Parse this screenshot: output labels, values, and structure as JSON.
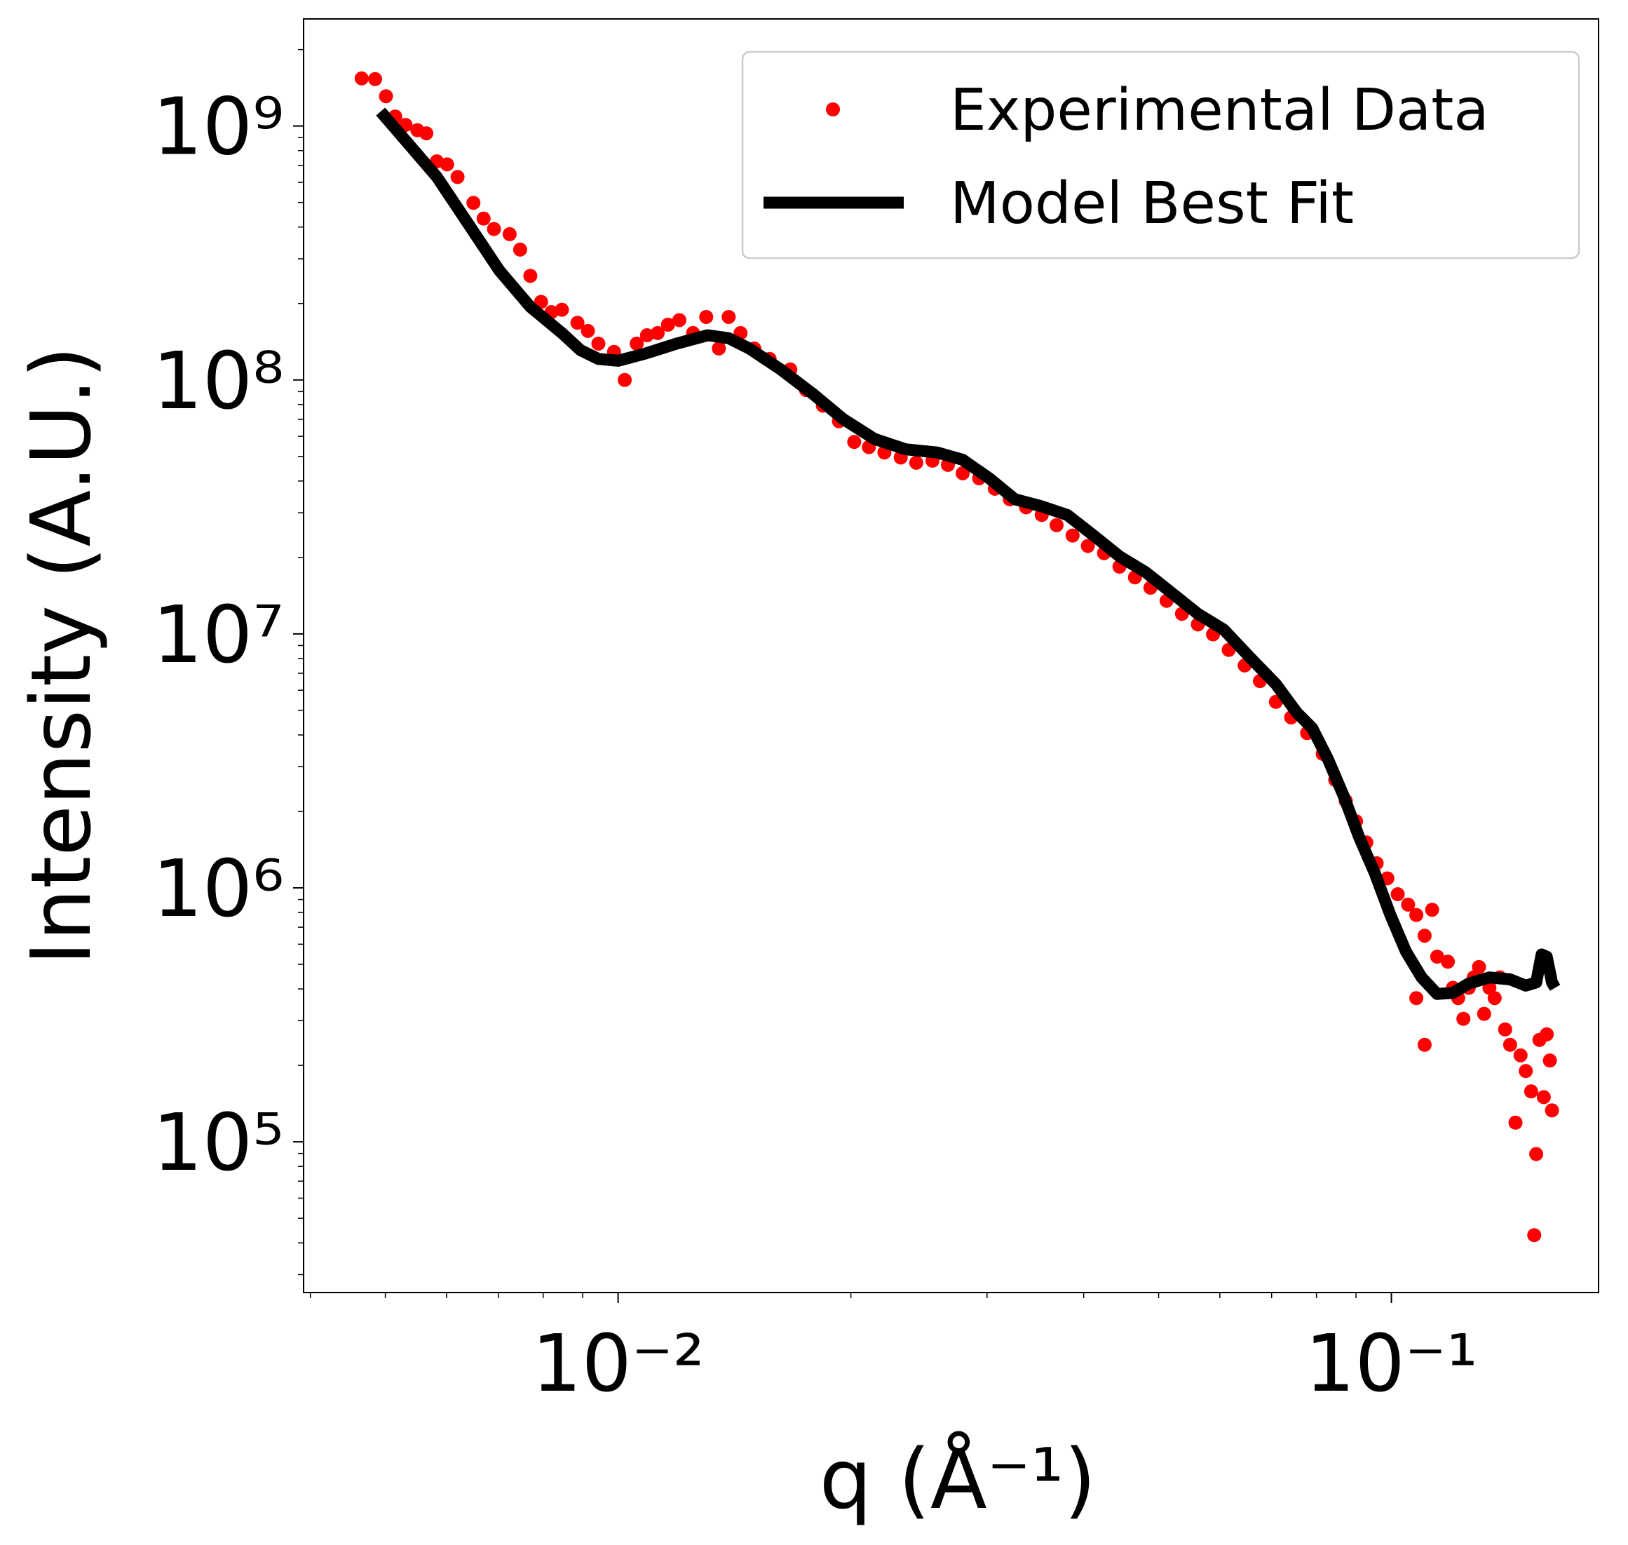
{
  "chart_data": {
    "type": "scatter",
    "xlabel": "q (Å⁻¹)",
    "ylabel": "Intensity (A.U.)",
    "xscale": "log",
    "yscale": "log",
    "xlim": [
      0.00392,
      0.1853
    ],
    "ylim": [
      25500,
      2640000000
    ],
    "xticks": [
      {
        "value": 0.01,
        "label": "10⁻²"
      },
      {
        "value": 0.1,
        "label": "10⁻¹"
      }
    ],
    "yticks": [
      {
        "value": 100000,
        "label": "10⁵"
      },
      {
        "value": 1000000,
        "label": "10⁶"
      },
      {
        "value": 10000000,
        "label": "10⁷"
      },
      {
        "value": 100000000,
        "label": "10⁸"
      },
      {
        "value": 1000000000,
        "label": "10⁹"
      }
    ],
    "xminorticks": [
      0.004,
      0.005,
      0.006,
      0.007,
      0.008,
      0.009,
      0.02,
      0.03,
      0.04,
      0.05,
      0.06,
      0.07,
      0.08,
      0.09
    ],
    "yminorticks": [
      30000,
      40000,
      50000,
      60000,
      70000,
      80000,
      90000,
      200000,
      300000,
      400000,
      500000,
      600000,
      700000,
      800000,
      900000,
      2000000,
      3000000,
      4000000,
      5000000,
      6000000,
      7000000,
      8000000,
      9000000,
      20000000,
      30000000,
      40000000,
      50000000,
      60000000,
      70000000,
      80000000,
      90000000,
      200000000,
      300000000,
      400000000,
      500000000,
      600000000,
      700000000,
      800000000,
      900000000,
      2000000000
    ],
    "legend": "upper right",
    "series": [
      {
        "name": "Experimental Data",
        "color": "#ff0000",
        "type": "scatter",
        "x": [
          0.00466,
          0.00485,
          0.00501,
          0.00515,
          0.00531,
          0.0055,
          0.00565,
          0.00583,
          0.00601,
          0.0062,
          0.0065,
          0.0067,
          0.00691,
          0.00724,
          0.00747,
          0.0077,
          0.00795,
          0.0082,
          0.00846,
          0.00886,
          0.00914,
          0.00943,
          0.00988,
          0.0102,
          0.01057,
          0.0109,
          0.01125,
          0.0116,
          0.012,
          0.0125,
          0.013,
          0.0135,
          0.0139,
          0.0144,
          0.015,
          0.0157,
          0.0167,
          0.0175,
          0.0184,
          0.0193,
          0.0202,
          0.0211,
          0.0221,
          0.0232,
          0.0243,
          0.0255,
          0.0267,
          0.0279,
          0.0293,
          0.0307,
          0.0321,
          0.0337,
          0.0353,
          0.0369,
          0.0387,
          0.0405,
          0.0425,
          0.0445,
          0.0466,
          0.0488,
          0.0512,
          0.0536,
          0.0562,
          0.0588,
          0.0616,
          0.0646,
          0.0676,
          0.0709,
          0.0742,
          0.0778,
          0.0815,
          0.0846,
          0.0873,
          0.09,
          0.0928,
          0.0957,
          0.0988,
          0.1019,
          0.1051,
          0.1077,
          0.1077,
          0.1104,
          0.1104,
          0.1129,
          0.1146,
          0.1183,
          0.1201,
          0.122,
          0.1239,
          0.1259,
          0.1278,
          0.1298,
          0.1318,
          0.1339,
          0.136,
          0.1381,
          0.1403,
          0.1424,
          0.1447,
          0.1469,
          0.1492,
          0.1516,
          0.153,
          0.1539,
          0.1554,
          0.1574,
          0.1588,
          0.1603,
          0.1613
        ],
        "values": [
          1540000000,
          1530000000,
          1310000000,
          1090000000,
          1010000000,
          963000000,
          936000000,
          726000000,
          706000000,
          630000000,
          498000000,
          432000000,
          393000000,
          375000000,
          326000000,
          257000000,
          203000000,
          185000000,
          189000000,
          168000000,
          156000000,
          139000000,
          129000000,
          100000000,
          139000000,
          150000000,
          153000000,
          165000000,
          172000000,
          153000000,
          177000000,
          133000000,
          177000000,
          153000000,
          133000000,
          121000000,
          110000000,
          91300000,
          79200000,
          68800000,
          57000000,
          54400000,
          51800000,
          49500000,
          47200000,
          48100000,
          46300000,
          42900000,
          41000000,
          37300000,
          33900000,
          31500000,
          29400000,
          26800000,
          24400000,
          22200000,
          20800000,
          18400000,
          16700000,
          15200000,
          13500000,
          12000000,
          10900000,
          9960000,
          8650000,
          7510000,
          6520000,
          5400000,
          4690000,
          4070000,
          3370000,
          2660000,
          2200000,
          1830000,
          1510000,
          1250000,
          1090000,
          944000,
          859000,
          782000,
          368000,
          648000,
          241000,
          820000,
          536000,
          512000,
          404000,
          368000,
          305000,
          404000,
          444000,
          488000,
          319000,
          404000,
          368000,
          444000,
          277000,
          241000,
          119000,
          219000,
          190000,
          158000,
          42900,
          89500,
          252000,
          150000,
          265000,
          209000,
          133000
        ]
      },
      {
        "name": "Model Best Fit",
        "color": "#000000",
        "type": "line",
        "x": [
          0.00493,
          0.00531,
          0.00583,
          0.0064,
          0.00702,
          0.0077,
          0.00846,
          0.00894,
          0.00943,
          0.01,
          0.01084,
          0.0119,
          0.01306,
          0.0139,
          0.01478,
          0.01623,
          0.01781,
          0.01955,
          0.02145,
          0.02355,
          0.02585,
          0.0279,
          0.0302,
          0.0326,
          0.0353,
          0.0381,
          0.0412,
          0.0445,
          0.0481,
          0.052,
          0.0562,
          0.0607,
          0.0656,
          0.0709,
          0.0754,
          0.079,
          0.0828,
          0.0867,
          0.0908,
          0.0952,
          0.0997,
          0.1044,
          0.1094,
          0.1146,
          0.1201,
          0.1259,
          0.1339,
          0.1424,
          0.1492,
          0.1539,
          0.1564,
          0.1588,
          0.1613,
          0.1628
        ],
        "values": [
          1140000000,
          877000000,
          630000000,
          412000000,
          270000000,
          194000000,
          153000000,
          131000000,
          121000000,
          119000000,
          127000000,
          139000000,
          150000000,
          146000000,
          133000000,
          110000000,
          88700000,
          70100000,
          58600000,
          53300000,
          51800000,
          48500000,
          41000000,
          33900000,
          31800000,
          29400000,
          24400000,
          20200000,
          17500000,
          14500000,
          12000000,
          10400000,
          8090000,
          6340000,
          4910000,
          4260000,
          3210000,
          2310000,
          1590000,
          1140000,
          782000,
          562000,
          444000,
          382000,
          386000,
          420000,
          444000,
          436000,
          412000,
          424000,
          547000,
          536000,
          424000,
          404000
        ]
      }
    ]
  }
}
